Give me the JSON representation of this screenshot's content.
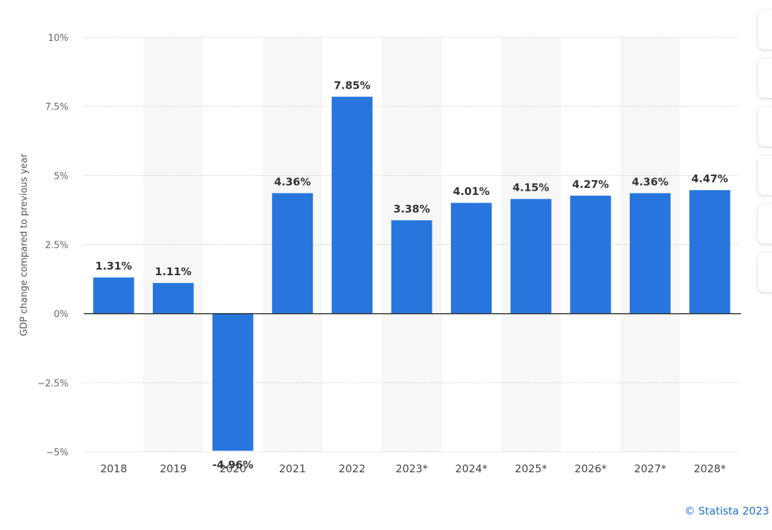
{
  "chart_data": {
    "type": "bar",
    "categories": [
      "2018",
      "2019",
      "2020",
      "2021",
      "2022",
      "2023*",
      "2024*",
      "2025*",
      "2026*",
      "2027*",
      "2028*"
    ],
    "values": [
      1.31,
      1.11,
      -4.96,
      4.36,
      7.85,
      3.38,
      4.01,
      4.15,
      4.27,
      4.36,
      4.47
    ],
    "data_labels": [
      "1.31%",
      "1.11%",
      "-4.96%",
      "4.36%",
      "7.85%",
      "3.38%",
      "4.01%",
      "4.15%",
      "4.27%",
      "4.36%",
      "4.47%"
    ],
    "ylabel": "GDP change compared to previous year",
    "ylim": [
      -5,
      10
    ],
    "yticks": [
      {
        "value": 10,
        "label": "10%"
      },
      {
        "value": 7.5,
        "label": "7.5%"
      },
      {
        "value": 5,
        "label": "5%"
      },
      {
        "value": 2.5,
        "label": "2.5%"
      },
      {
        "value": 0,
        "label": "0%"
      },
      {
        "value": -2.5,
        "label": "−2.5%"
      },
      {
        "value": -5,
        "label": "−5%"
      }
    ],
    "grid": true,
    "bar_color": "#2876dd",
    "band_color": "#f7f7f7"
  },
  "credit": "© Statista 2023",
  "side_toolbar": {
    "buttons": [
      "toolbar-button-1",
      "toolbar-button-2",
      "toolbar-button-3",
      "toolbar-button-4",
      "toolbar-button-5",
      "toolbar-button-6"
    ]
  }
}
